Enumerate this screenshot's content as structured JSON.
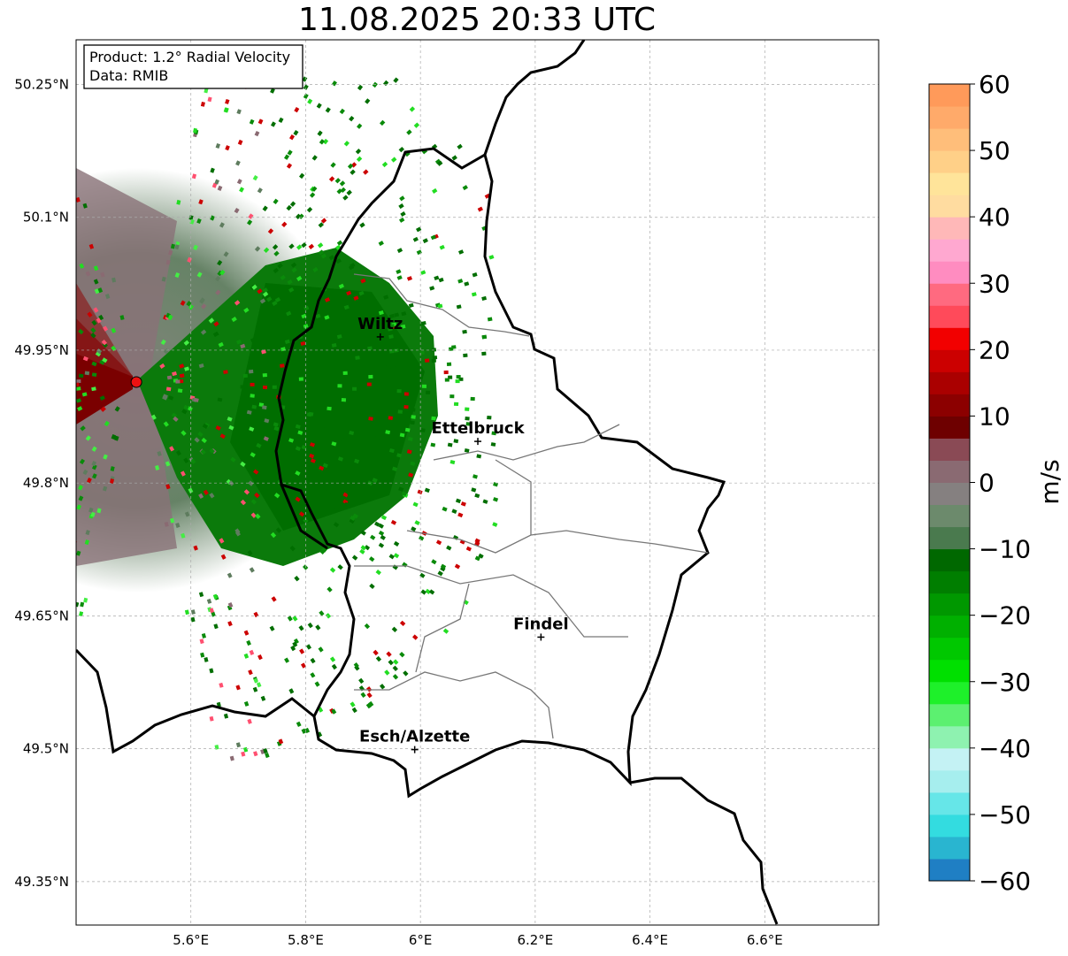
{
  "title": "11.08.2025 20:33 UTC",
  "info": {
    "product": "Product: 1.2° Radial Velocity",
    "source": "Data: RMIB"
  },
  "axes": {
    "lon_ticks": [
      "5.6°E",
      "5.8°E",
      "6°E",
      "6.2°E",
      "6.4°E",
      "6.6°E"
    ],
    "lat_ticks": [
      "50.25°N",
      "50.1°N",
      "49.95°N",
      "49.8°N",
      "49.65°N",
      "49.5°N",
      "49.35°N"
    ]
  },
  "cities": [
    {
      "name": "Wiltz",
      "lon": 5.93,
      "lat": 49.965
    },
    {
      "name": "Ettelbruck",
      "lon": 6.1,
      "lat": 49.847
    },
    {
      "name": "Findel",
      "lon": 6.21,
      "lat": 49.626
    },
    {
      "name": "Esch/Alzette",
      "lon": 5.99,
      "lat": 49.499
    }
  ],
  "radar": {
    "lon": 5.505,
    "lat": 49.914
  },
  "colorbar": {
    "label": "m/s",
    "ticks": [
      "60",
      "50",
      "40",
      "30",
      "20",
      "10",
      "0",
      "−10",
      "−20",
      "−30",
      "−40",
      "−50",
      "−60"
    ],
    "min": -60,
    "max": 60,
    "colors": [
      "#1f7fc4",
      "#29b5d0",
      "#33dce0",
      "#66e6e8",
      "#a6eeee",
      "#c4f2f4",
      "#8ef2b0",
      "#5cf070",
      "#1ef02a",
      "#00e000",
      "#00c800",
      "#00b000",
      "#009800",
      "#007e00",
      "#006800",
      "#4a7a4e",
      "#6c8a6c",
      "#858080",
      "#8a6a72",
      "#8a4a55",
      "#6e0000",
      "#8c0000",
      "#aa0000",
      "#cc0000",
      "#f20000",
      "#ff4a5a",
      "#ff6a80",
      "#ff8cc0",
      "#ffa8d0",
      "#ffb8b8",
      "#ffdca0",
      "#ffe49a",
      "#ffd088",
      "#ffbe7a",
      "#ffaa6a",
      "#ff9a5a"
    ]
  }
}
